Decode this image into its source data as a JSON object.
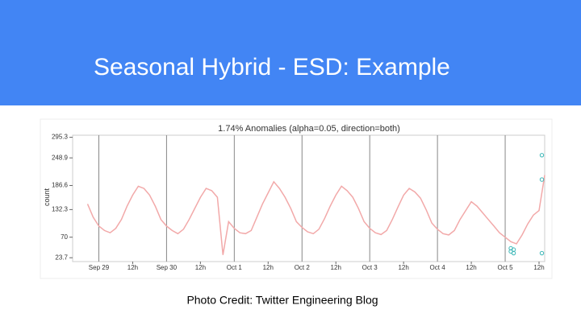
{
  "slide": {
    "title": "Seasonal Hybrid - ESD: Example",
    "caption": "Photo Credit: Twitter Engineering Blog"
  },
  "chart_data": {
    "type": "line",
    "title": "1.74% Anomalies (alpha=0.05, direction=both)",
    "y_label": "count",
    "color": "#f2a9a9",
    "x": [
      -4,
      -2,
      0,
      2,
      4,
      6,
      8,
      10,
      12,
      14,
      16,
      18,
      20,
      22,
      24,
      26,
      28,
      30,
      32,
      34,
      36,
      38,
      40,
      42,
      44,
      46,
      48,
      50,
      52,
      54,
      56,
      58,
      60,
      62,
      64,
      66,
      68,
      70,
      72,
      74,
      76,
      78,
      80,
      82,
      84,
      86,
      88,
      90,
      92,
      94,
      96,
      98,
      100,
      102,
      104,
      106,
      108,
      110,
      112,
      114,
      116,
      118,
      120,
      122,
      124,
      126,
      128,
      130,
      132,
      134,
      136,
      138,
      140,
      142,
      144,
      146,
      148,
      150,
      152,
      154,
      156,
      158
    ],
    "values": [
      145,
      115,
      95,
      85,
      80,
      90,
      110,
      140,
      165,
      185,
      180,
      165,
      140,
      110,
      95,
      85,
      78,
      88,
      110,
      135,
      160,
      180,
      175,
      160,
      30,
      105,
      90,
      80,
      78,
      85,
      115,
      145,
      170,
      195,
      180,
      160,
      135,
      105,
      92,
      82,
      78,
      88,
      112,
      140,
      165,
      185,
      175,
      160,
      135,
      105,
      90,
      80,
      76,
      85,
      110,
      138,
      165,
      180,
      172,
      158,
      132,
      102,
      88,
      78,
      75,
      85,
      110,
      130,
      150,
      140,
      125,
      110,
      95,
      80,
      70,
      60,
      55,
      75,
      100,
      120,
      130,
      210
    ],
    "anomalies": {
      "color": "#3bb7b7",
      "x": [
        146,
        146,
        147,
        147,
        157,
        157,
        157
      ],
      "values": [
        45,
        38,
        42,
        34,
        255,
        200,
        34
      ]
    },
    "xlim": [
      -5,
      158
    ],
    "xticks": [
      {
        "value": 0,
        "label": "Sep 29"
      },
      {
        "value": 12,
        "label": "12h"
      },
      {
        "value": 24,
        "label": "Sep 30"
      },
      {
        "value": 36,
        "label": "12h"
      },
      {
        "value": 48,
        "label": "Oct 1"
      },
      {
        "value": 60,
        "label": "12h"
      },
      {
        "value": 72,
        "label": "Oct 2"
      },
      {
        "value": 84,
        "label": "12h"
      },
      {
        "value": 96,
        "label": "Oct 3"
      },
      {
        "value": 108,
        "label": "12h"
      },
      {
        "value": 120,
        "label": "Oct 4"
      },
      {
        "value": 132,
        "label": "12h"
      },
      {
        "value": 144,
        "label": "Oct 5"
      },
      {
        "value": 156,
        "label": "12h"
      }
    ],
    "ylim": [
      15,
      300
    ],
    "yticks": [
      23.7,
      70,
      132.3,
      186.6,
      248.9,
      295.3
    ],
    "grid": true
  }
}
